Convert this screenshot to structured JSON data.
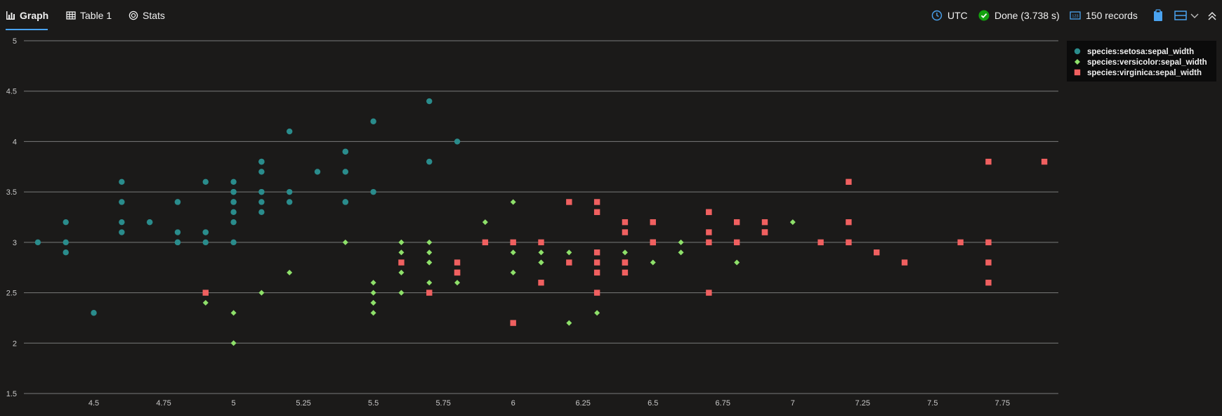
{
  "tabs": [
    {
      "label": "Graph",
      "icon": "bar-chart-icon",
      "active": true
    },
    {
      "label": "Table 1",
      "icon": "table-icon",
      "active": false
    },
    {
      "label": "Stats",
      "icon": "stats-icon",
      "active": false
    }
  ],
  "status": {
    "timezone": "UTC",
    "done": "Done (3.738 s)",
    "records": "150 records"
  },
  "colors": {
    "background": "#1b1a19",
    "accent": "#4aa3f0",
    "done_green": "#13a10e",
    "grid": "#7a7a7a"
  },
  "chart_data": {
    "type": "scatter",
    "title": "",
    "xlabel": "",
    "ylabel": "",
    "xlim": [
      4.25,
      7.95
    ],
    "ylim": [
      1.5,
      5
    ],
    "xticks": [
      4.5,
      4.75,
      5,
      5.25,
      5.5,
      5.75,
      6,
      6.25,
      6.5,
      6.75,
      7,
      7.25,
      7.5,
      7.75
    ],
    "yticks": [
      1.5,
      2,
      2.5,
      3,
      3.5,
      4,
      4.5,
      5
    ],
    "grid": "horizontal",
    "legend_position": "top-right",
    "series": [
      {
        "name": "species:setosa:sepal_width",
        "marker": "circle",
        "color": "#2a8c8c",
        "x": [
          5.1,
          4.9,
          4.7,
          4.6,
          5,
          5.4,
          4.6,
          5,
          4.4,
          4.9,
          5.4,
          4.8,
          4.8,
          4.3,
          5.8,
          5.7,
          5.4,
          5.1,
          5.7,
          5.1,
          5.4,
          5.1,
          4.6,
          5.1,
          4.8,
          5,
          5,
          5.2,
          5.2,
          4.7,
          4.8,
          5.4,
          5.2,
          5.5,
          4.9,
          5,
          5.5,
          4.9,
          4.4,
          5.1,
          5,
          4.5,
          4.4,
          5,
          5.1,
          4.8,
          5.1,
          4.6,
          5.3,
          5
        ],
        "y": [
          3.5,
          3,
          3.2,
          3.1,
          3.6,
          3.9,
          3.4,
          3.4,
          2.9,
          3.1,
          3.7,
          3.4,
          3,
          3,
          4,
          4.4,
          3.9,
          3.5,
          3.8,
          3.8,
          3.4,
          3.7,
          3.6,
          3.3,
          3.4,
          3,
          3.4,
          3.5,
          3.4,
          3.2,
          3.1,
          3.4,
          4.1,
          4.2,
          3.1,
          3.2,
          3.5,
          3.6,
          3,
          3.4,
          3.5,
          2.3,
          3.2,
          3.5,
          3.8,
          3,
          3.8,
          3.2,
          3.7,
          3.3
        ]
      },
      {
        "name": "species:versicolor:sepal_width",
        "marker": "diamond",
        "color": "#8ee06a",
        "x": [
          7,
          6.4,
          6.9,
          5.5,
          6.5,
          5.7,
          6.3,
          4.9,
          6.6,
          5.2,
          5,
          5.9,
          6,
          6.1,
          5.6,
          6.7,
          5.6,
          5.8,
          6.2,
          5.6,
          5.9,
          6.1,
          6.3,
          6.1,
          6.4,
          6.6,
          6.8,
          6.7,
          6,
          5.7,
          5.5,
          5.5,
          5.8,
          6,
          5.4,
          6,
          6.7,
          6.3,
          5.6,
          5.5,
          5.5,
          6.1,
          5.8,
          5,
          5.6,
          5.7,
          5.7,
          6.2,
          5.1,
          5.7
        ],
        "y": [
          3.2,
          3.2,
          3.1,
          2.3,
          2.8,
          2.8,
          3.3,
          2.4,
          2.9,
          2.7,
          2,
          3,
          2.2,
          2.9,
          2.9,
          3.1,
          3,
          2.7,
          2.2,
          2.5,
          3.2,
          2.8,
          2.5,
          2.8,
          2.9,
          3,
          2.8,
          3,
          2.9,
          2.6,
          2.4,
          2.4,
          2.7,
          2.7,
          3,
          3.4,
          3.1,
          2.3,
          3,
          2.5,
          2.6,
          3,
          2.6,
          2.3,
          2.7,
          3,
          2.9,
          2.9,
          2.5,
          2.8
        ]
      },
      {
        "name": "species:virginica:sepal_width",
        "marker": "square",
        "color": "#f06060",
        "x": [
          6.3,
          5.8,
          7.1,
          6.3,
          6.5,
          7.6,
          4.9,
          7.3,
          6.7,
          7.2,
          6.5,
          6.4,
          6.8,
          5.7,
          5.8,
          6.4,
          6.5,
          7.7,
          7.7,
          6,
          6.9,
          5.6,
          7.7,
          6.3,
          6.7,
          7.2,
          6.2,
          6.1,
          6.4,
          7.2,
          7.4,
          7.9,
          6.4,
          6.3,
          6.1,
          7.7,
          6.3,
          6.4,
          6,
          6.9,
          6.7,
          6.9,
          5.8,
          6.8,
          6.7,
          6.7,
          6.3,
          6.5,
          6.2,
          5.9
        ],
        "y": [
          3.3,
          2.7,
          3,
          2.9,
          3,
          3,
          2.5,
          2.9,
          2.5,
          3.6,
          3.2,
          2.7,
          3,
          2.5,
          2.8,
          3.2,
          3,
          3.8,
          2.6,
          2.2,
          3.2,
          2.8,
          2.8,
          2.7,
          3.3,
          3.2,
          2.8,
          3,
          2.8,
          3,
          2.8,
          3.8,
          2.8,
          2.8,
          2.6,
          3,
          3.4,
          3.1,
          3,
          3.1,
          3.1,
          3.1,
          2.7,
          3.2,
          3.3,
          3,
          2.5,
          3,
          3.4,
          3
        ]
      }
    ]
  }
}
